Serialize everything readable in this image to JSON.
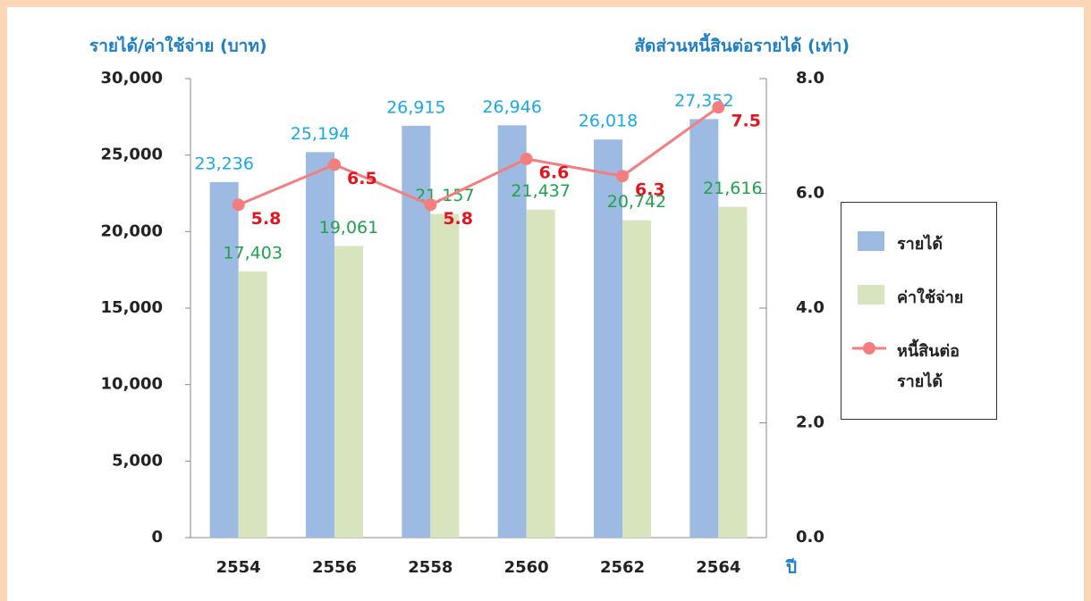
{
  "chart_data": {
    "type": "bar",
    "y_label": "รายได้/ค่าใช้จ่าย (บาท)",
    "y2_label": "สัดส่วนหนี้สินต่อรายได้ (เท่า)",
    "x_label": "ปี",
    "categories": [
      "2554",
      "2556",
      "2558",
      "2560",
      "2562",
      "2564"
    ],
    "series": [
      {
        "name": "รายได้",
        "type": "bar",
        "color": "#9dbbe2",
        "label_color": "#1aa9e3",
        "values": [
          23236,
          25194,
          26915,
          26946,
          26018,
          27352
        ],
        "value_labels": [
          "23,236",
          "25,194",
          "26,915",
          "26,946",
          "26,018",
          "27,352"
        ]
      },
      {
        "name": "ค่าใช้จ่าย",
        "type": "bar",
        "color": "#d7e4bd",
        "label_color": "#1ea24a",
        "values": [
          17403,
          19061,
          21157,
          21437,
          20742,
          21616
        ],
        "value_labels": [
          "17,403",
          "19,061",
          "21,157",
          "21,437",
          "20,742",
          "21,616"
        ]
      },
      {
        "name": "หนี้สินต่อรายได้",
        "type": "line",
        "axis": "y2",
        "color": "#f47d80",
        "label_color": "#e3141e",
        "values": [
          5.8,
          6.5,
          5.8,
          6.6,
          6.3,
          7.5
        ],
        "value_labels": [
          "5.8",
          "6.5",
          "5.8",
          "6.6",
          "6.3",
          "7.5"
        ]
      }
    ],
    "ylim": [
      0,
      30000
    ],
    "yticks": [
      {
        "value": 0,
        "label": "0"
      },
      {
        "value": 5000,
        "label": "5,000"
      },
      {
        "value": 10000,
        "label": "10,000"
      },
      {
        "value": 15000,
        "label": "15,000"
      },
      {
        "value": 20000,
        "label": "20,000"
      },
      {
        "value": 25000,
        "label": "25,000"
      },
      {
        "value": 30000,
        "label": "30,000"
      }
    ],
    "y2lim": [
      0,
      8
    ],
    "y2ticks": [
      {
        "value": 0,
        "label": "0.0"
      },
      {
        "value": 2,
        "label": "2.0"
      },
      {
        "value": 4,
        "label": "4.0"
      },
      {
        "value": 6,
        "label": "6.0"
      },
      {
        "value": 8,
        "label": "8.0"
      }
    ],
    "legend": "right"
  }
}
